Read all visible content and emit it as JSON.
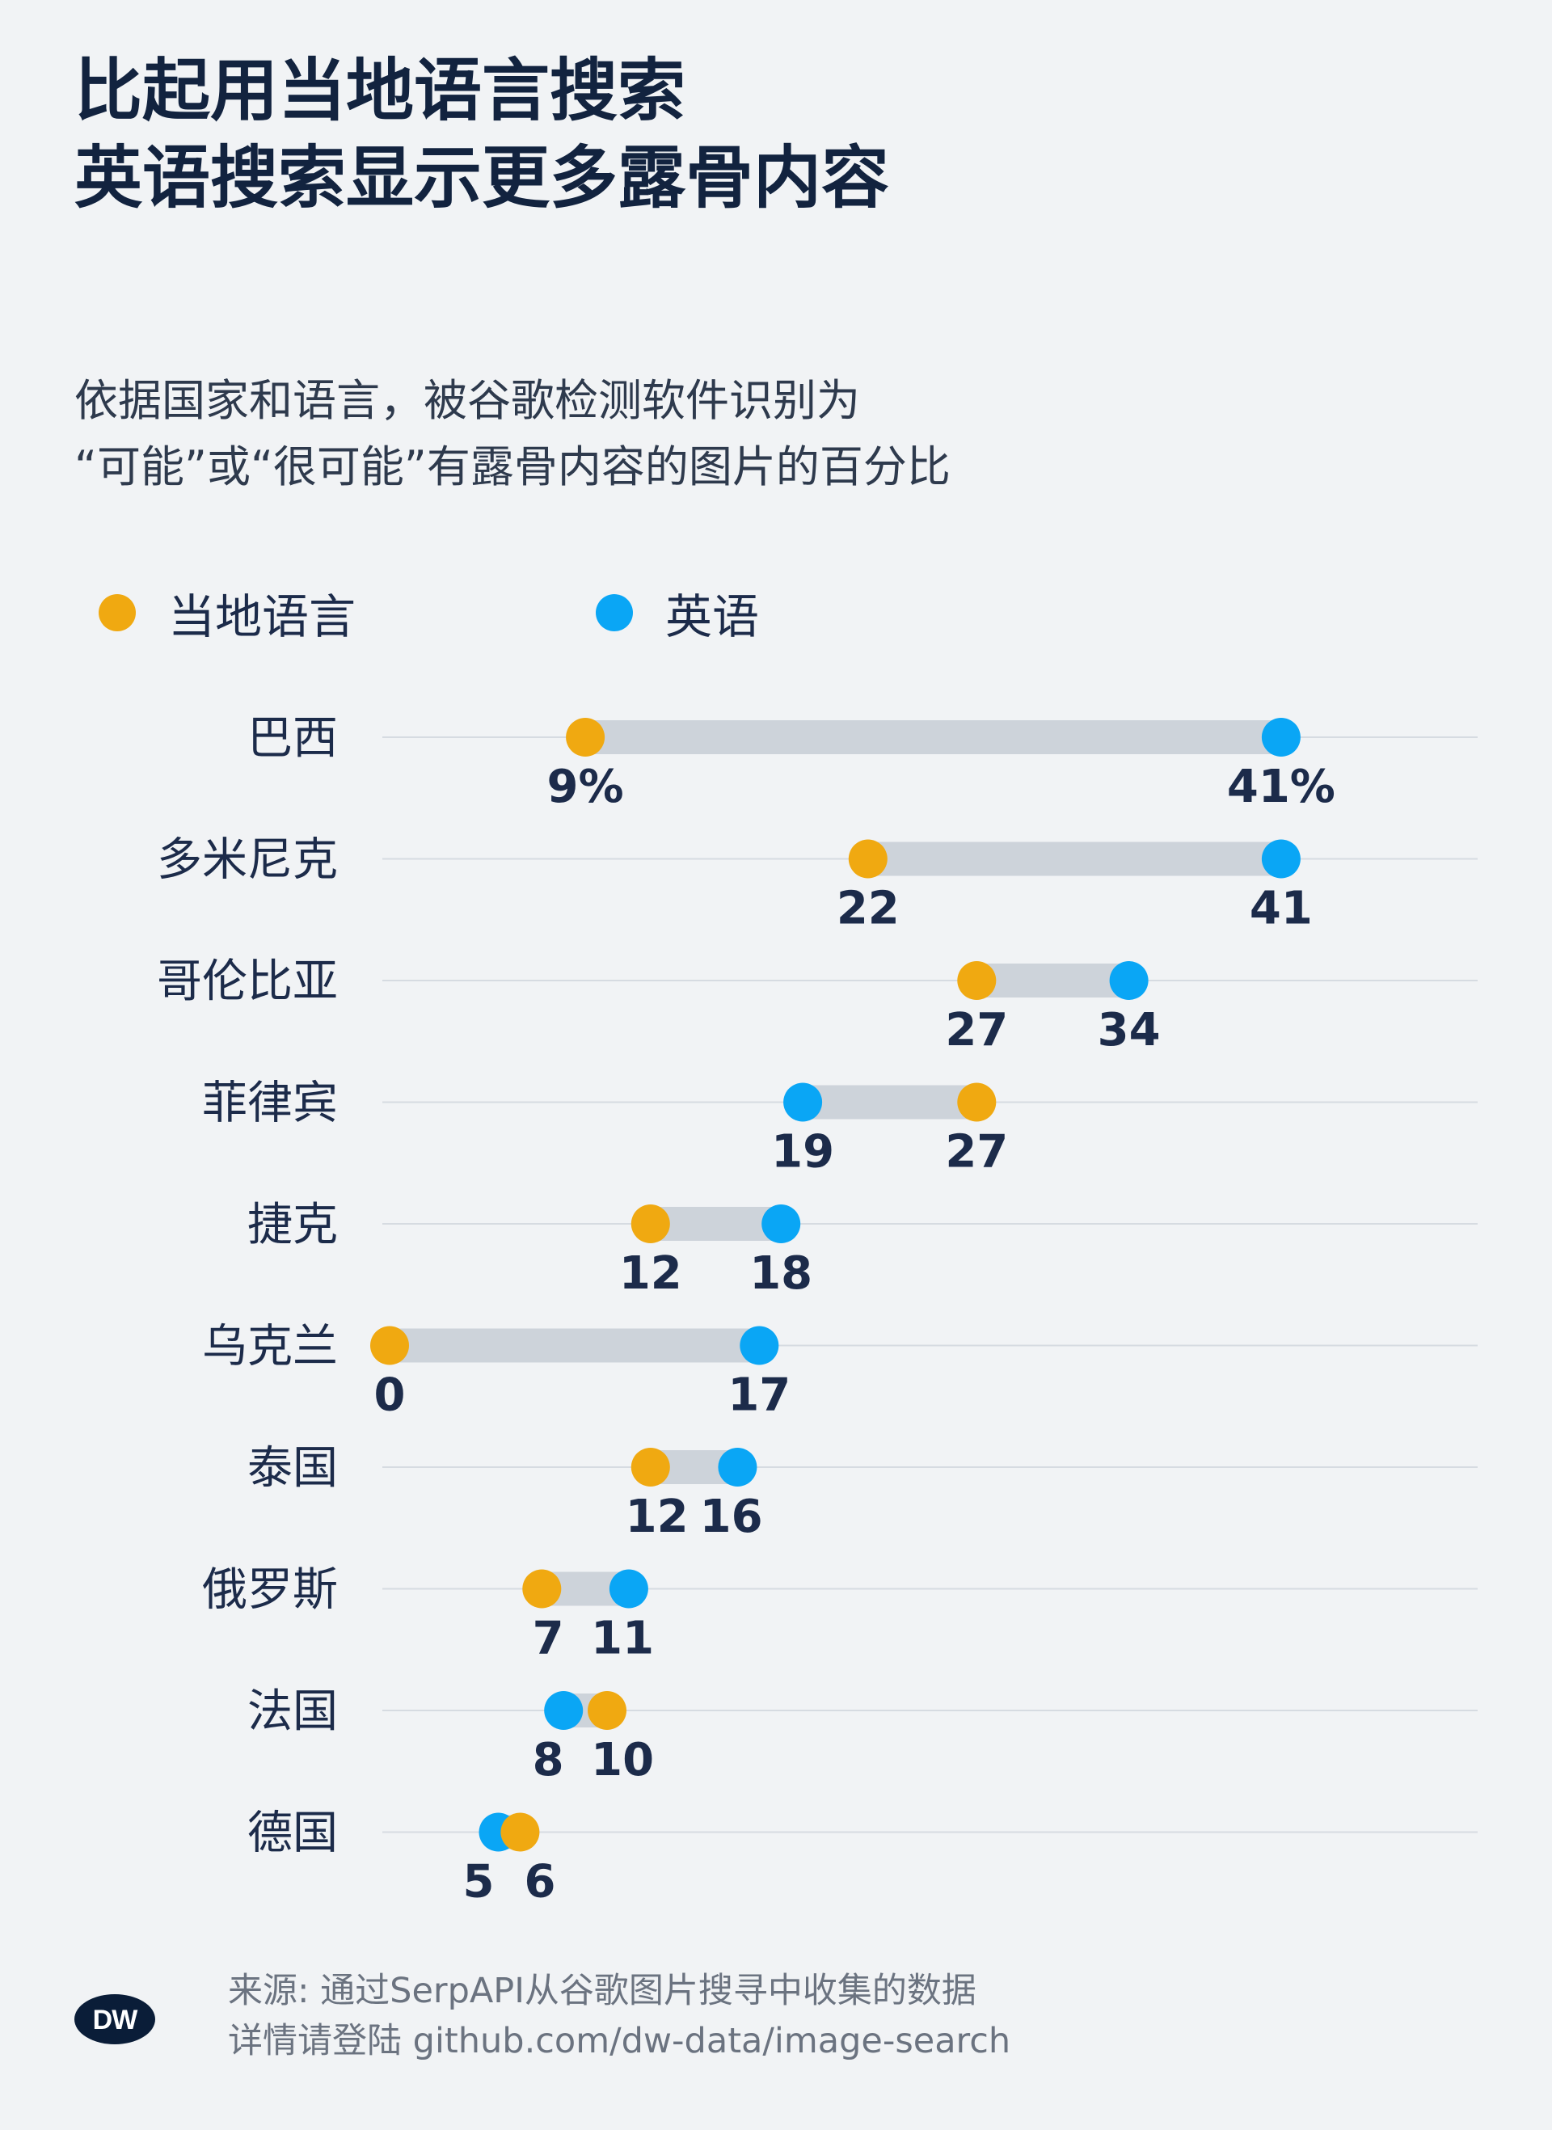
{
  "header": {
    "title_line1": "比起用当地语言搜索",
    "title_line2": "英语搜索显示更多露骨内容",
    "subtitle_line1": "依据国家和语言，被谷歌检测软件识别为",
    "subtitle_line2": "“可能”或“很可能”有露骨内容的图片的百分比"
  },
  "legend": {
    "local_label": "当地语言",
    "english_label": "英语"
  },
  "colors": {
    "local": "#f0a911",
    "english": "#0aa6f5",
    "range_bar": "#cdd3da",
    "gridline": "#d6dbe1",
    "value_text": "#1c2b4a",
    "background": "#f1f3f5"
  },
  "chart_data": {
    "type": "dot-range",
    "unit": "%",
    "xlim": [
      0,
      50
    ],
    "series": [
      {
        "name": "当地语言",
        "key": "local"
      },
      {
        "name": "英语",
        "key": "english"
      }
    ],
    "rows": [
      {
        "country": "巴西",
        "local": 9,
        "english": 41,
        "local_label": "9%",
        "english_label": "41%"
      },
      {
        "country": "多米尼克",
        "local": 22,
        "english": 41,
        "local_label": "22",
        "english_label": "41"
      },
      {
        "country": "哥伦比亚",
        "local": 27,
        "english": 34,
        "local_label": "27",
        "english_label": "34"
      },
      {
        "country": "菲律宾",
        "local": 27,
        "english": 19,
        "local_label": "27",
        "english_label": "19"
      },
      {
        "country": "捷克",
        "local": 12,
        "english": 18,
        "local_label": "12",
        "english_label": "18"
      },
      {
        "country": "乌克兰",
        "local": 0,
        "english": 17,
        "local_label": "0",
        "english_label": "17"
      },
      {
        "country": "泰国",
        "local": 12,
        "english": 16,
        "local_label": "12",
        "english_label": "16"
      },
      {
        "country": "俄罗斯",
        "local": 7,
        "english": 11,
        "local_label": "7",
        "english_label": "11"
      },
      {
        "country": "法国",
        "local": 10,
        "english": 8,
        "local_label": "10",
        "english_label": "8"
      },
      {
        "country": "德国",
        "local": 6,
        "english": 5,
        "local_label": "6",
        "english_label": "5"
      }
    ]
  },
  "footer": {
    "source_line1": "来源: 通过SerpAPI从谷歌图片搜寻中收集的数据",
    "source_line2": "详情请登陆 github.com/dw-data/image-search",
    "logo_text": "DW"
  }
}
